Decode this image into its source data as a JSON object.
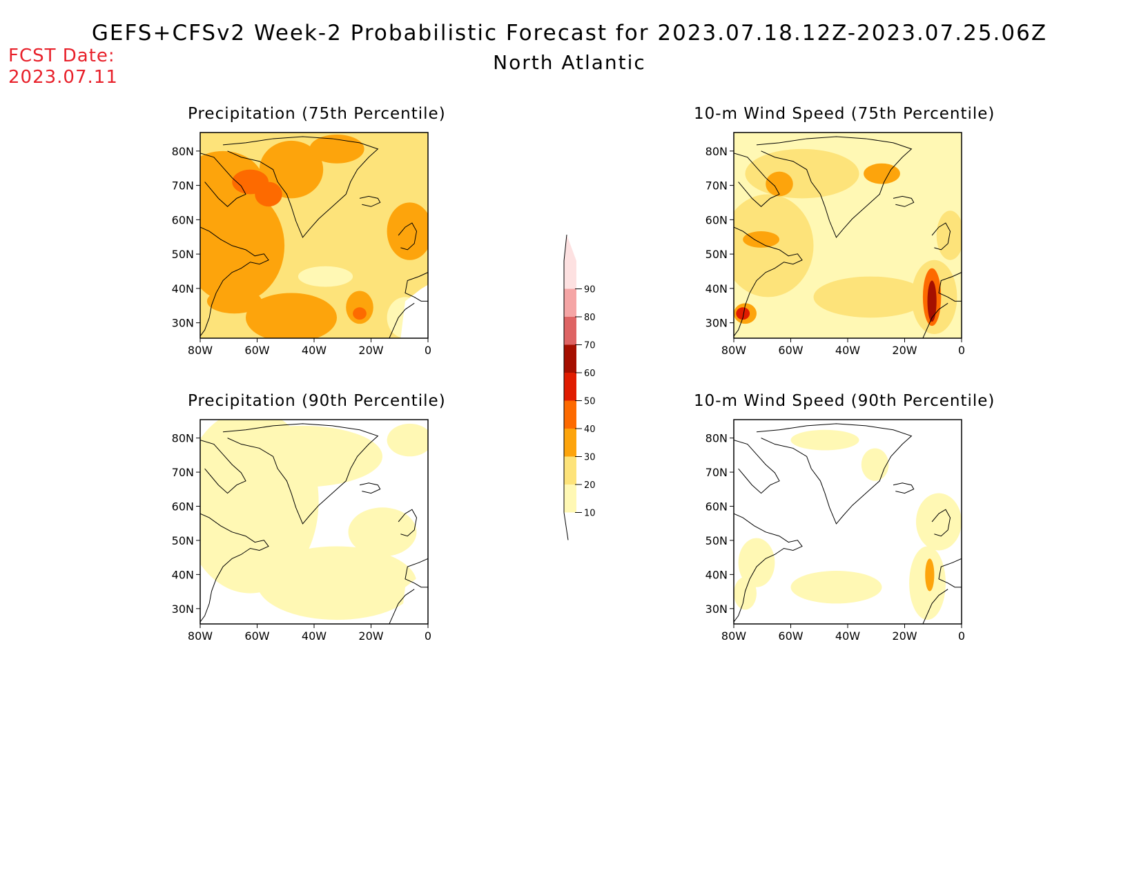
{
  "header": {
    "title": "GEFS+CFSv2 Week-2 Probabilistic Forecast for 2023.07.18.12Z-2023.07.25.06Z",
    "subtitle": "North Atlantic",
    "fcst_label": "FCST Date:",
    "fcst_date": "2023.07.11",
    "fcst_color": "#e8202a"
  },
  "panels": [
    {
      "title": "Precipitation (75th Percentile)",
      "variable": "precipitation",
      "percentile": 75,
      "level": "high"
    },
    {
      "title": "10-m Wind Speed (75th Percentile)",
      "variable": "wind",
      "percentile": 75,
      "level": "medium"
    },
    {
      "title": "Precipitation (90th Percentile)",
      "variable": "precipitation",
      "percentile": 90,
      "level": "low"
    },
    {
      "title": "10-m Wind Speed (90th Percentile)",
      "variable": "wind",
      "percentile": 90,
      "level": "very-low"
    }
  ],
  "axes": {
    "lat_labels": [
      "80N",
      "70N",
      "60N",
      "50N",
      "40N",
      "30N"
    ],
    "lon_labels": [
      "80W",
      "60W",
      "40W",
      "20W",
      "0"
    ]
  },
  "colorbar": {
    "levels": [
      "10",
      "20",
      "30",
      "40",
      "50",
      "60",
      "70",
      "80",
      "90"
    ],
    "colors": [
      "#fff8b4",
      "#fde37a",
      "#fda40c",
      "#fd6a00",
      "#e01c00",
      "#a50f00",
      "#de6464",
      "#f5a5a5",
      "#fde1e1"
    ]
  }
}
